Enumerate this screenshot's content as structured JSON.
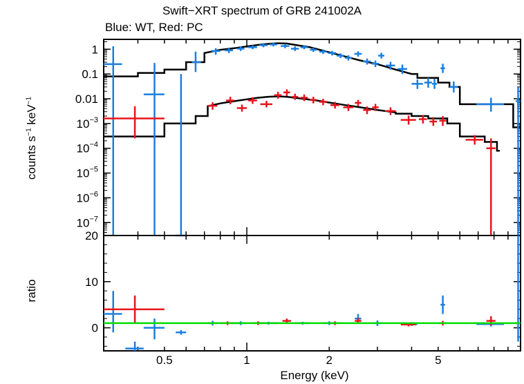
{
  "chart_data": {
    "type": "scatter",
    "title": "Swift−XRT spectrum of GRB 241002A",
    "subtitle": "Blue: WT, Red: PC",
    "xlabel": "Energy (keV)",
    "x_scale": "log",
    "xlim": [
      0.3,
      10
    ],
    "x_ticks": [
      {
        "value": 0.5,
        "label": "0.5"
      },
      {
        "value": 1,
        "label": "1"
      },
      {
        "value": 2,
        "label": "2"
      },
      {
        "value": 5,
        "label": "5"
      }
    ],
    "upper_panel": {
      "ylabel_main": "counts s",
      "ylabel_exp1": "−1",
      "ylabel_mid": " keV",
      "ylabel_exp2": "−1",
      "y_scale": "log",
      "ylim": [
        3e-08,
        2.5
      ],
      "y_ticks": [
        {
          "value": 1,
          "base": "1",
          "exp": ""
        },
        {
          "value": 0.1,
          "base": "0.1",
          "exp": ""
        },
        {
          "value": 0.01,
          "base": "0.01",
          "exp": ""
        },
        {
          "value": 0.001,
          "base": "10",
          "exp": "−3"
        },
        {
          "value": 0.0001,
          "base": "10",
          "exp": "−4"
        },
        {
          "value": 1e-05,
          "base": "10",
          "exp": "−5"
        },
        {
          "value": 1e-06,
          "base": "10",
          "exp": "−6"
        },
        {
          "value": 1e-07,
          "base": "10",
          "exp": "−7"
        }
      ]
    },
    "lower_panel": {
      "ylabel": "ratio",
      "ylim": [
        -5,
        20
      ],
      "y_ticks": [
        {
          "value": 0,
          "label": "0"
        },
        {
          "value": 10,
          "label": "10"
        },
        {
          "value": 20,
          "label": "20"
        }
      ],
      "reference_line": {
        "value": 1,
        "color": "#00dd00"
      }
    },
    "series": [
      {
        "name": "WT",
        "color": "#1a7fe0",
        "data": [
          {
            "x": 0.325,
            "xl": 0.3,
            "xh": 0.35,
            "y": 0.25,
            "yl": 3e-08,
            "yh": 1.3
          },
          {
            "x": 0.46,
            "xl": 0.42,
            "xh": 0.5,
            "y": 0.015,
            "yl": 3e-08,
            "yh": 0.28
          },
          {
            "x": 0.575,
            "xl": 0.55,
            "xh": 0.6,
            "y": 0.0,
            "yl": 3e-08,
            "yh": 0.1
          },
          {
            "x": 0.65,
            "xl": 0.63,
            "xh": 0.68,
            "y": 0.3,
            "yl": 0.12,
            "yh": 0.8
          },
          {
            "x": 0.77,
            "xl": 0.74,
            "xh": 0.8,
            "y": 0.85,
            "yl": 0.6,
            "yh": 1.1
          },
          {
            "x": 0.86,
            "xl": 0.83,
            "xh": 0.89,
            "y": 0.9,
            "yl": 0.7,
            "yh": 1.15
          },
          {
            "x": 0.95,
            "xl": 0.92,
            "xh": 0.98,
            "y": 1.05,
            "yl": 0.85,
            "yh": 1.3
          },
          {
            "x": 1.05,
            "xl": 1.01,
            "xh": 1.09,
            "y": 1.2,
            "yl": 1.0,
            "yh": 1.45
          },
          {
            "x": 1.15,
            "xl": 1.11,
            "xh": 1.19,
            "y": 1.45,
            "yl": 1.2,
            "yh": 1.75
          },
          {
            "x": 1.25,
            "xl": 1.21,
            "xh": 1.29,
            "y": 1.55,
            "yl": 1.3,
            "yh": 1.85
          },
          {
            "x": 1.38,
            "xl": 1.33,
            "xh": 1.43,
            "y": 1.35,
            "yl": 1.1,
            "yh": 1.65
          },
          {
            "x": 1.5,
            "xl": 1.45,
            "xh": 1.55,
            "y": 1.05,
            "yl": 0.85,
            "yh": 1.3
          },
          {
            "x": 1.62,
            "xl": 1.57,
            "xh": 1.67,
            "y": 1.2,
            "yl": 1.0,
            "yh": 1.45
          },
          {
            "x": 1.75,
            "xl": 1.7,
            "xh": 1.8,
            "y": 0.95,
            "yl": 0.78,
            "yh": 1.15
          },
          {
            "x": 1.9,
            "xl": 1.84,
            "xh": 1.96,
            "y": 0.8,
            "yl": 0.65,
            "yh": 0.98
          },
          {
            "x": 2.05,
            "xl": 1.98,
            "xh": 2.12,
            "y": 0.7,
            "yl": 0.56,
            "yh": 0.86
          },
          {
            "x": 2.2,
            "xl": 2.13,
            "xh": 2.27,
            "y": 0.55,
            "yl": 0.44,
            "yh": 0.68
          },
          {
            "x": 2.35,
            "xl": 2.28,
            "xh": 2.42,
            "y": 0.45,
            "yl": 0.35,
            "yh": 0.57
          },
          {
            "x": 2.55,
            "xl": 2.47,
            "xh": 2.63,
            "y": 0.65,
            "yl": 0.5,
            "yh": 0.82
          },
          {
            "x": 2.75,
            "xl": 2.66,
            "xh": 2.84,
            "y": 0.32,
            "yl": 0.24,
            "yh": 0.42
          },
          {
            "x": 2.95,
            "xl": 2.86,
            "xh": 3.04,
            "y": 0.26,
            "yl": 0.19,
            "yh": 0.35
          },
          {
            "x": 3.1,
            "xl": 3.02,
            "xh": 3.18,
            "y": 0.55,
            "yl": 0.42,
            "yh": 0.72
          },
          {
            "x": 3.35,
            "xl": 3.22,
            "xh": 3.48,
            "y": 0.22,
            "yl": 0.15,
            "yh": 0.31
          },
          {
            "x": 3.7,
            "xl": 3.55,
            "xh": 3.85,
            "y": 0.16,
            "yl": 0.1,
            "yh": 0.24
          },
          {
            "x": 4.2,
            "xl": 4.0,
            "xh": 4.4,
            "y": 0.04,
            "yl": 0.025,
            "yh": 0.06
          },
          {
            "x": 4.6,
            "xl": 4.45,
            "xh": 4.75,
            "y": 0.045,
            "yl": 0.028,
            "yh": 0.07
          },
          {
            "x": 4.85,
            "xl": 4.75,
            "xh": 4.95,
            "y": 0.04,
            "yl": 0.025,
            "yh": 0.065
          },
          {
            "x": 5.2,
            "xl": 5.1,
            "xh": 5.3,
            "y": 0.17,
            "yl": 0.11,
            "yh": 0.26
          },
          {
            "x": 5.7,
            "xl": 5.5,
            "xh": 5.9,
            "y": 0.03,
            "yl": 0.018,
            "yh": 0.05
          },
          {
            "x": 7.8,
            "xl": 6.9,
            "xh": 8.7,
            "y": 0.006,
            "yl": 0.003,
            "yh": 0.011
          },
          {
            "x": 9.8,
            "xl": 9.6,
            "xh": 10.0,
            "y": 0.008,
            "yl": 3e-08,
            "yh": 0.03
          }
        ]
      },
      {
        "name": "PC",
        "color": "#e8141c",
        "data": [
          {
            "x": 0.39,
            "xl": 0.3,
            "xh": 0.5,
            "y": 0.0016,
            "yl": 0.00025,
            "yh": 0.005
          },
          {
            "x": 0.75,
            "xl": 0.72,
            "xh": 0.78,
            "y": 0.0052,
            "yl": 0.0036,
            "yh": 0.0072
          },
          {
            "x": 0.87,
            "xl": 0.84,
            "xh": 0.9,
            "y": 0.0085,
            "yl": 0.006,
            "yh": 0.012
          },
          {
            "x": 0.96,
            "xl": 0.92,
            "xh": 1.0,
            "y": 0.0042,
            "yl": 0.003,
            "yh": 0.0058
          },
          {
            "x": 1.05,
            "xl": 1.01,
            "xh": 1.09,
            "y": 0.0085,
            "yl": 0.0062,
            "yh": 0.0115
          },
          {
            "x": 1.18,
            "xl": 1.12,
            "xh": 1.24,
            "y": 0.006,
            "yl": 0.0045,
            "yh": 0.0082
          },
          {
            "x": 1.3,
            "xl": 1.26,
            "xh": 1.34,
            "y": 0.014,
            "yl": 0.01,
            "yh": 0.019
          },
          {
            "x": 1.4,
            "xl": 1.36,
            "xh": 1.44,
            "y": 0.018,
            "yl": 0.013,
            "yh": 0.024
          },
          {
            "x": 1.5,
            "xl": 1.46,
            "xh": 1.54,
            "y": 0.012,
            "yl": 0.009,
            "yh": 0.016
          },
          {
            "x": 1.62,
            "xl": 1.57,
            "xh": 1.67,
            "y": 0.011,
            "yl": 0.008,
            "yh": 0.015
          },
          {
            "x": 1.75,
            "xl": 1.7,
            "xh": 1.8,
            "y": 0.009,
            "yl": 0.0065,
            "yh": 0.012
          },
          {
            "x": 1.9,
            "xl": 1.84,
            "xh": 1.96,
            "y": 0.0075,
            "yl": 0.0055,
            "yh": 0.01
          },
          {
            "x": 2.1,
            "xl": 2.02,
            "xh": 2.18,
            "y": 0.0055,
            "yl": 0.004,
            "yh": 0.0075
          },
          {
            "x": 2.35,
            "xl": 2.25,
            "xh": 2.45,
            "y": 0.0045,
            "yl": 0.0032,
            "yh": 0.0062
          },
          {
            "x": 2.55,
            "xl": 2.48,
            "xh": 2.62,
            "y": 0.0068,
            "yl": 0.005,
            "yh": 0.009
          },
          {
            "x": 2.75,
            "xl": 2.66,
            "xh": 2.84,
            "y": 0.0035,
            "yl": 0.0024,
            "yh": 0.0049
          },
          {
            "x": 2.95,
            "xl": 2.87,
            "xh": 3.03,
            "y": 0.0045,
            "yl": 0.0032,
            "yh": 0.0062
          },
          {
            "x": 3.35,
            "xl": 3.2,
            "xh": 3.5,
            "y": 0.0032,
            "yl": 0.0022,
            "yh": 0.0045
          },
          {
            "x": 3.9,
            "xl": 3.65,
            "xh": 4.15,
            "y": 0.0014,
            "yl": 0.0009,
            "yh": 0.0021
          },
          {
            "x": 4.4,
            "xl": 4.25,
            "xh": 4.55,
            "y": 0.0015,
            "yl": 0.001,
            "yh": 0.0022
          },
          {
            "x": 4.8,
            "xl": 4.65,
            "xh": 4.95,
            "y": 0.0012,
            "yl": 0.0008,
            "yh": 0.0018
          },
          {
            "x": 5.2,
            "xl": 5.05,
            "xh": 5.35,
            "y": 0.0013,
            "yl": 0.0008,
            "yh": 0.002
          },
          {
            "x": 6.8,
            "xl": 6.3,
            "xh": 7.3,
            "y": 0.00022,
            "yl": 0.00014,
            "yh": 0.00034
          },
          {
            "x": 7.8,
            "xl": 7.5,
            "xh": 8.1,
            "y": 0.0001,
            "yl": 3e-08,
            "yh": 0.00025
          }
        ]
      }
    ],
    "model_wt": [
      [
        0.3,
        0.08
      ],
      [
        0.4,
        0.08
      ],
      [
        0.4,
        0.11
      ],
      [
        0.5,
        0.11
      ],
      [
        0.5,
        0.15
      ],
      [
        0.6,
        0.15
      ],
      [
        0.6,
        0.3
      ],
      [
        0.7,
        0.3
      ],
      [
        0.7,
        0.7
      ],
      [
        0.8,
        0.95
      ],
      [
        0.9,
        1.1
      ],
      [
        1.0,
        1.3
      ],
      [
        1.1,
        1.5
      ],
      [
        1.2,
        1.65
      ],
      [
        1.3,
        1.75
      ],
      [
        1.4,
        1.7
      ],
      [
        1.5,
        1.5
      ],
      [
        1.7,
        1.2
      ],
      [
        2.0,
        0.75
      ],
      [
        2.3,
        0.5
      ],
      [
        2.6,
        0.35
      ],
      [
        3.0,
        0.25
      ],
      [
        3.5,
        0.15
      ],
      [
        4.0,
        0.1
      ],
      [
        4.2,
        0.1
      ],
      [
        4.2,
        0.07
      ],
      [
        5.0,
        0.07
      ],
      [
        5.0,
        0.045
      ],
      [
        5.5,
        0.045
      ],
      [
        5.5,
        0.03
      ],
      [
        6.0,
        0.03
      ],
      [
        6.0,
        0.006
      ],
      [
        9.4,
        0.006
      ],
      [
        9.4,
        0.0007
      ],
      [
        10.0,
        0.0007
      ]
    ],
    "model_pc": [
      [
        0.3,
        0.0003
      ],
      [
        0.5,
        0.0003
      ],
      [
        0.5,
        0.001
      ],
      [
        0.65,
        0.001
      ],
      [
        0.65,
        0.002
      ],
      [
        0.72,
        0.002
      ],
      [
        0.72,
        0.005
      ],
      [
        0.8,
        0.0065
      ],
      [
        0.9,
        0.008
      ],
      [
        1.0,
        0.0095
      ],
      [
        1.1,
        0.011
      ],
      [
        1.2,
        0.012
      ],
      [
        1.3,
        0.0125
      ],
      [
        1.4,
        0.012
      ],
      [
        1.6,
        0.01
      ],
      [
        1.8,
        0.0085
      ],
      [
        2.0,
        0.007
      ],
      [
        2.3,
        0.0055
      ],
      [
        2.6,
        0.0045
      ],
      [
        3.0,
        0.0035
      ],
      [
        3.5,
        0.0028
      ],
      [
        3.5,
        0.0025
      ],
      [
        4.0,
        0.0025
      ],
      [
        4.0,
        0.002
      ],
      [
        4.6,
        0.002
      ],
      [
        4.6,
        0.0016
      ],
      [
        5.4,
        0.0016
      ],
      [
        5.4,
        0.001
      ],
      [
        6.0,
        0.001
      ],
      [
        6.0,
        0.0003
      ],
      [
        7.4,
        0.0003
      ],
      [
        7.4,
        0.00018
      ],
      [
        8.2,
        0.00018
      ],
      [
        8.2,
        8e-05
      ],
      [
        8.4,
        8e-05
      ]
    ],
    "ratio_wt": [
      {
        "x": 0.325,
        "xl": 0.3,
        "xh": 0.35,
        "y": 3.0,
        "yl": -1.0,
        "yh": 8.0
      },
      {
        "x": 0.39,
        "xl": 0.36,
        "xh": 0.42,
        "y": -4.5,
        "yl": -5.0,
        "yh": -3.0
      },
      {
        "x": 0.46,
        "xl": 0.42,
        "xh": 0.5,
        "y": 0.0,
        "yl": -2.5,
        "yh": 2.0
      },
      {
        "x": 0.575,
        "xl": 0.55,
        "xh": 0.6,
        "y": -1.0,
        "yl": -1.5,
        "yh": -0.5
      },
      {
        "x": 0.75,
        "xl": 0.72,
        "xh": 0.78,
        "y": 1.0,
        "yl": 0.5,
        "yh": 1.5
      },
      {
        "x": 0.95,
        "xl": 0.9,
        "xh": 1.0,
        "y": 1.0,
        "yl": 0.6,
        "yh": 1.4
      },
      {
        "x": 1.2,
        "xl": 1.1,
        "xh": 1.3,
        "y": 1.0,
        "yl": 0.7,
        "yh": 1.3
      },
      {
        "x": 1.6,
        "xl": 1.5,
        "xh": 1.7,
        "y": 1.0,
        "yl": 0.7,
        "yh": 1.3
      },
      {
        "x": 2.0,
        "xl": 1.9,
        "xh": 2.1,
        "y": 1.0,
        "yl": 0.6,
        "yh": 1.4
      },
      {
        "x": 2.55,
        "xl": 2.48,
        "xh": 2.62,
        "y": 2.0,
        "yl": 1.0,
        "yh": 3.0
      },
      {
        "x": 3.0,
        "xl": 2.9,
        "xh": 3.1,
        "y": 1.0,
        "yl": 0.4,
        "yh": 1.6
      },
      {
        "x": 4.0,
        "xl": 3.8,
        "xh": 4.2,
        "y": 0.8,
        "yl": 0.4,
        "yh": 1.2
      },
      {
        "x": 5.2,
        "xl": 5.1,
        "xh": 5.3,
        "y": 5.0,
        "yl": 3.0,
        "yh": 7.0
      },
      {
        "x": 7.8,
        "xl": 6.9,
        "xh": 8.7,
        "y": 0.8,
        "yl": 0.3,
        "yh": 1.3
      },
      {
        "x": 9.8,
        "xl": 9.6,
        "xh": 10.0,
        "y": 1.0,
        "yl": -3.0,
        "yh": 20.0
      }
    ],
    "ratio_pc": [
      {
        "x": 0.39,
        "xl": 0.3,
        "xh": 0.5,
        "y": 4.0,
        "yl": 1.0,
        "yh": 7.0
      },
      {
        "x": 0.85,
        "xl": 0.8,
        "xh": 0.9,
        "y": 1.0,
        "yl": 0.6,
        "yh": 1.4
      },
      {
        "x": 1.1,
        "xl": 1.05,
        "xh": 1.15,
        "y": 1.0,
        "yl": 0.6,
        "yh": 1.4
      },
      {
        "x": 1.4,
        "xl": 1.35,
        "xh": 1.45,
        "y": 1.5,
        "yl": 1.0,
        "yh": 2.0
      },
      {
        "x": 2.1,
        "xl": 2.0,
        "xh": 2.2,
        "y": 1.0,
        "yl": 0.6,
        "yh": 1.4
      },
      {
        "x": 2.55,
        "xl": 2.48,
        "xh": 2.62,
        "y": 1.5,
        "yl": 0.9,
        "yh": 2.1
      },
      {
        "x": 3.9,
        "xl": 3.65,
        "xh": 4.15,
        "y": 0.7,
        "yl": 0.3,
        "yh": 1.1
      },
      {
        "x": 5.2,
        "xl": 5.05,
        "xh": 5.35,
        "y": 1.0,
        "yl": 0.5,
        "yh": 1.5
      },
      {
        "x": 7.8,
        "xl": 7.5,
        "xh": 8.1,
        "y": 1.5,
        "yl": 0.5,
        "yh": 2.5
      }
    ]
  }
}
